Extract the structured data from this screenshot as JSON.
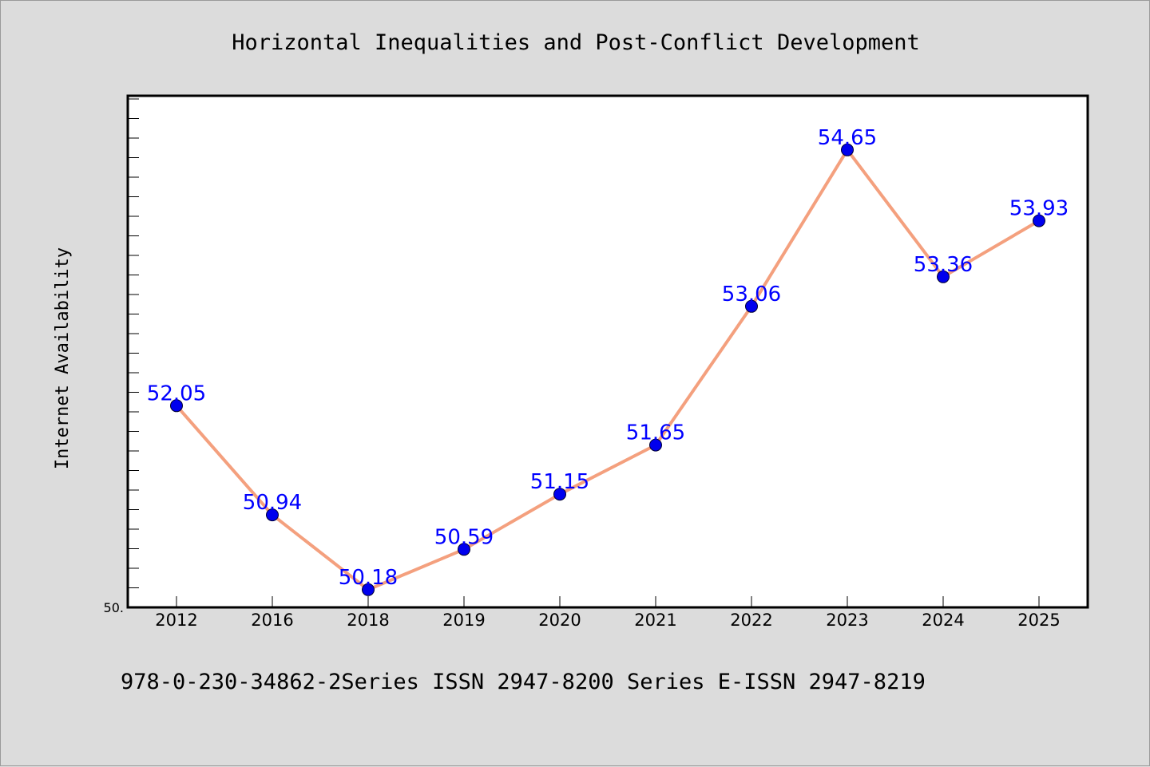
{
  "chart_data": {
    "type": "line",
    "title": "Horizontal Inequalities and Post-Conflict Development",
    "ylabel": "Internet Availability",
    "xlabel": "",
    "categories": [
      "2012",
      "2016",
      "2018",
      "2019",
      "2020",
      "2021",
      "2022",
      "2023",
      "2024",
      "2025"
    ],
    "series": [
      {
        "values": [
          52.05,
          50.94,
          50.18,
          50.59,
          51.15,
          51.65,
          53.06,
          54.65,
          53.36,
          53.93
        ]
      }
    ],
    "data_labels": [
      "52.05",
      "50.94",
      "50.18",
      "50.59",
      "51.15",
      "51.65",
      "53.06",
      "54.65",
      "53.36",
      "53.93"
    ],
    "y_tick_label": "50.",
    "ylim": [
      50.0,
      55.2
    ],
    "grid": false,
    "legend": "none",
    "colors": {
      "line": "#f4a07e",
      "marker": "#0000ee",
      "data_label": "#0000ff",
      "background": "#dcdcdc",
      "plot_background": "#ffffff"
    }
  },
  "footer": {
    "note": "978-0-230-34862-2Series ISSN 2947-8200 Series E-ISSN 2947-8219"
  }
}
